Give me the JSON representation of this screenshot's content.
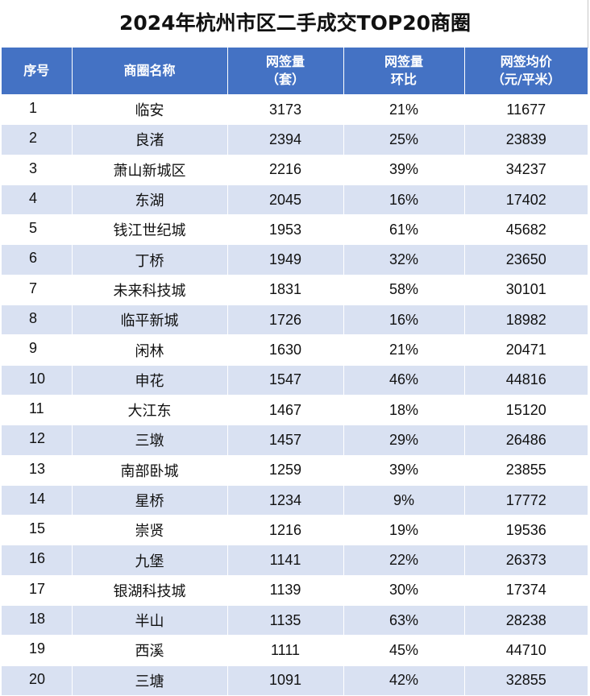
{
  "title": "2024年杭州市区二手成交TOP20商圈",
  "header": {
    "rank": "序号",
    "name": "商圈名称",
    "volume_line1": "网签量",
    "volume_line2": "（套）",
    "mom_line1": "网签量",
    "mom_line2": "环比",
    "price_line1": "网签均价",
    "price_line2": "（元/平米）"
  },
  "rows": [
    {
      "rank": "1",
      "name": "临安",
      "volume": "3173",
      "mom": "21%",
      "price": "11677"
    },
    {
      "rank": "2",
      "name": "良渚",
      "volume": "2394",
      "mom": "25%",
      "price": "23839"
    },
    {
      "rank": "3",
      "name": "萧山新城区",
      "volume": "2216",
      "mom": "39%",
      "price": "34237"
    },
    {
      "rank": "4",
      "name": "东湖",
      "volume": "2045",
      "mom": "16%",
      "price": "17402"
    },
    {
      "rank": "5",
      "name": "钱江世纪城",
      "volume": "1953",
      "mom": "61%",
      "price": "45682"
    },
    {
      "rank": "6",
      "name": "丁桥",
      "volume": "1949",
      "mom": "32%",
      "price": "23650"
    },
    {
      "rank": "7",
      "name": "未来科技城",
      "volume": "1831",
      "mom": "58%",
      "price": "30101"
    },
    {
      "rank": "8",
      "name": "临平新城",
      "volume": "1726",
      "mom": "16%",
      "price": "18982"
    },
    {
      "rank": "9",
      "name": "闲林",
      "volume": "1630",
      "mom": "21%",
      "price": "20471"
    },
    {
      "rank": "10",
      "name": "申花",
      "volume": "1547",
      "mom": "46%",
      "price": "44816"
    },
    {
      "rank": "11",
      "name": "大江东",
      "volume": "1467",
      "mom": "18%",
      "price": "15120"
    },
    {
      "rank": "12",
      "name": "三墩",
      "volume": "1457",
      "mom": "29%",
      "price": "26486"
    },
    {
      "rank": "13",
      "name": "南部卧城",
      "volume": "1259",
      "mom": "39%",
      "price": "23855"
    },
    {
      "rank": "14",
      "name": "星桥",
      "volume": "1234",
      "mom": "9%",
      "price": "17772"
    },
    {
      "rank": "15",
      "name": "崇贤",
      "volume": "1216",
      "mom": "19%",
      "price": "19536"
    },
    {
      "rank": "16",
      "name": "九堡",
      "volume": "1141",
      "mom": "22%",
      "price": "26373"
    },
    {
      "rank": "17",
      "name": "银湖科技城",
      "volume": "1139",
      "mom": "30%",
      "price": "17374"
    },
    {
      "rank": "18",
      "name": "半山",
      "volume": "1135",
      "mom": "63%",
      "price": "28238"
    },
    {
      "rank": "19",
      "name": "西溪",
      "volume": "1111",
      "mom": "45%",
      "price": "44710"
    },
    {
      "rank": "20",
      "name": "三塘",
      "volume": "1091",
      "mom": "42%",
      "price": "32855"
    }
  ],
  "colors": {
    "header_bg": "#4472c4",
    "header_text": "#ffffff",
    "band_row": "#d9e1f2",
    "plain_row": "#ffffff"
  }
}
